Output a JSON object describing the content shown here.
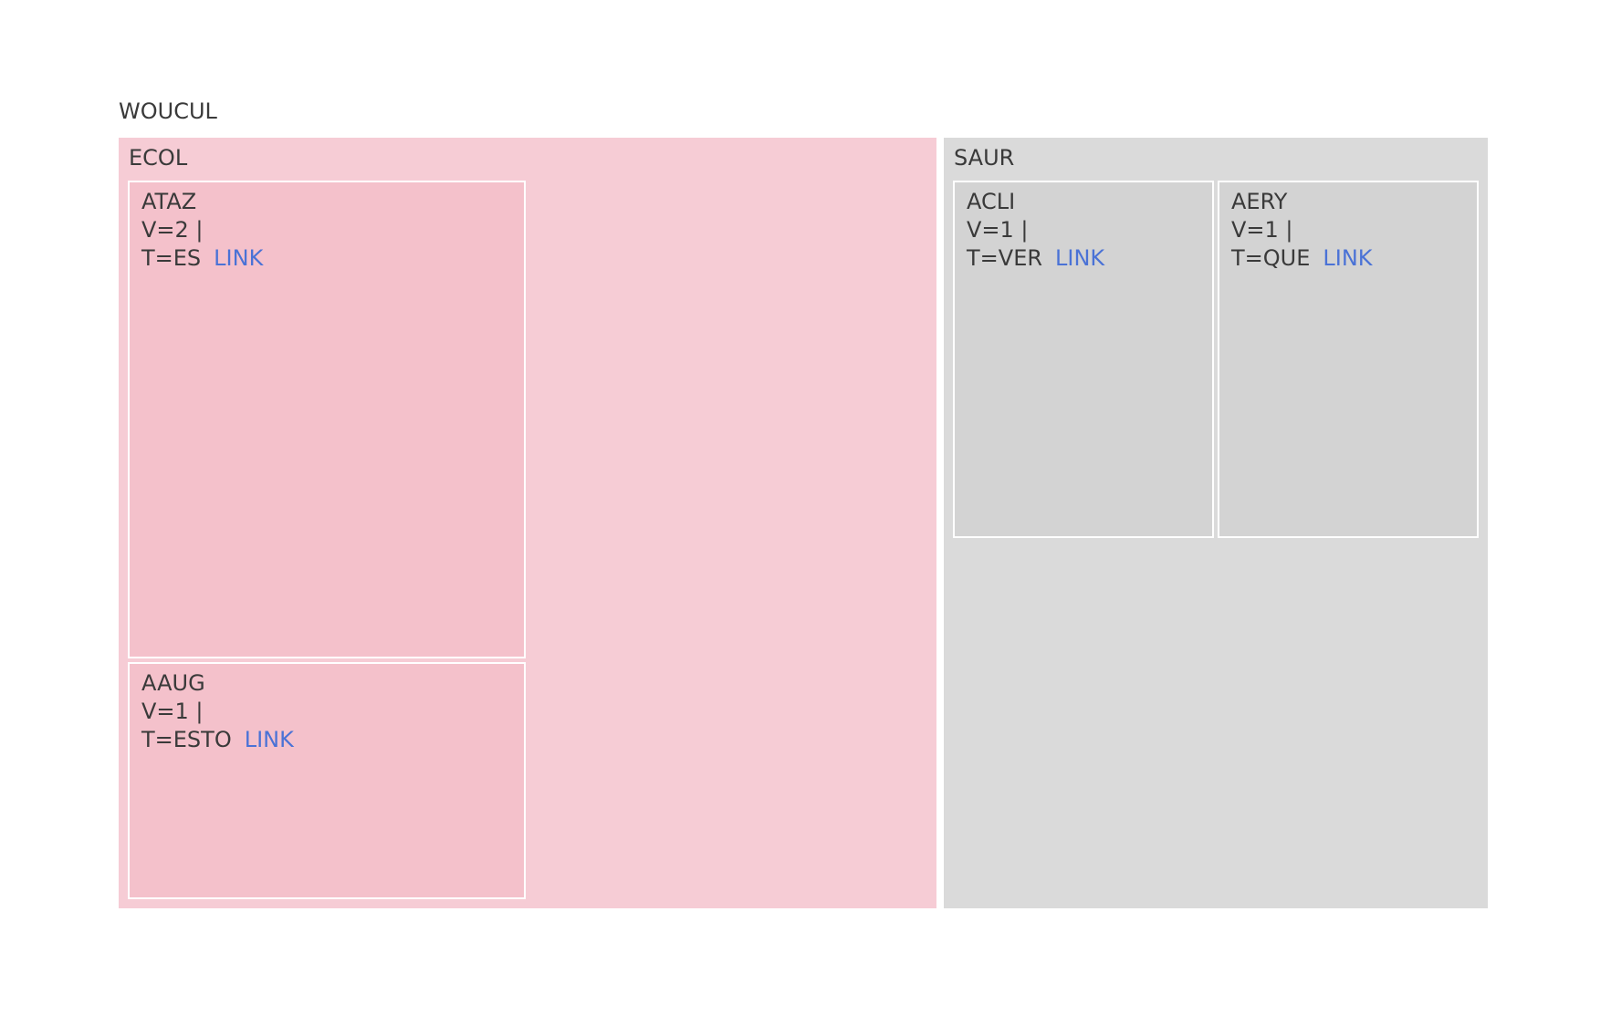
{
  "chart_data": {
    "type": "treemap",
    "title": "WOUCUL",
    "colors": {
      "ECOL": "#f6ccd5",
      "ECOL_leaf": "#f4c1cb",
      "SAUR": "#dadada",
      "SAUR_leaf": "#d3d3d3",
      "link": "#4a72d6"
    },
    "groups": [
      {
        "name": "ECOL",
        "children": [
          {
            "name": "ATAZ",
            "value_text": "V=2 |",
            "type_text": "T=ES",
            "link": "LINK",
            "value": 2
          },
          {
            "name": "AAUG",
            "value_text": "V=1 |",
            "type_text": "T=ESTO",
            "link": "LINK",
            "value": 1
          }
        ]
      },
      {
        "name": "SAUR",
        "children": [
          {
            "name": "ACLI",
            "value_text": "V=1 |",
            "type_text": "T=VER",
            "link": "LINK",
            "value": 1
          },
          {
            "name": "AERY",
            "value_text": "V=1 |",
            "type_text": "T=QUE",
            "link": "LINK",
            "value": 1
          }
        ]
      }
    ]
  }
}
